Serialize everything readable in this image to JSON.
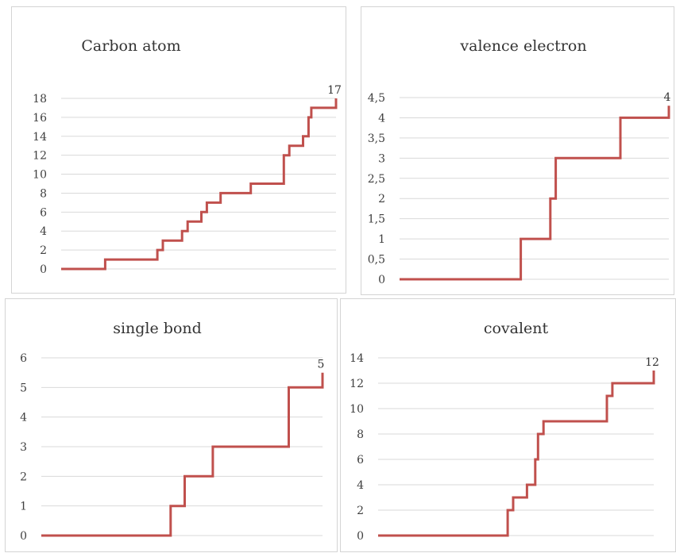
{
  "colors": {
    "line": "#c0504d",
    "grid": "#d9d9d9",
    "border": "#d4d4d4"
  },
  "chart_data": [
    {
      "type": "line",
      "title": "Carbon atom",
      "ylim": [
        0,
        18
      ],
      "yticks": [
        "0",
        "2",
        "4",
        "6",
        "8",
        "10",
        "12",
        "14",
        "16",
        "18"
      ],
      "grid": true,
      "x": [
        0,
        1,
        2,
        3,
        4,
        5,
        6,
        7,
        8,
        9,
        10,
        11,
        12,
        13,
        14,
        15,
        16,
        17,
        18,
        19,
        20,
        21,
        22,
        23,
        24,
        25,
        26,
        27,
        28,
        29,
        30,
        31,
        32,
        33,
        34,
        35,
        36,
        37,
        38,
        39,
        40,
        41,
        42,
        43,
        44,
        45,
        46,
        47,
        48,
        49,
        50,
        51,
        52,
        53,
        54,
        55,
        56,
        57,
        58,
        59,
        60,
        61,
        62,
        63,
        64,
        65,
        66,
        67,
        68,
        69,
        70,
        71,
        72,
        73,
        74,
        75,
        76,
        77,
        78,
        79,
        80,
        81,
        82,
        83,
        84,
        85,
        86,
        87,
        88,
        89,
        90,
        91,
        92,
        93,
        94,
        95,
        96,
        97,
        98,
        99,
        100
      ],
      "values": [
        0,
        0,
        0,
        0,
        0,
        0,
        0,
        0,
        0,
        0,
        0,
        0,
        0,
        0,
        0,
        0,
        1,
        1,
        1,
        1,
        1,
        1,
        1,
        1,
        1,
        1,
        1,
        1,
        1,
        1,
        1,
        1,
        1,
        1,
        1,
        2,
        2,
        3,
        3,
        3,
        3,
        3,
        3,
        3,
        4,
        4,
        5,
        5,
        5,
        5,
        5,
        6,
        6,
        7,
        7,
        7,
        7,
        7,
        8,
        8,
        8,
        8,
        8,
        8,
        8,
        8,
        8,
        8,
        8,
        9,
        9,
        9,
        9,
        9,
        9,
        9,
        9,
        9,
        9,
        9,
        9,
        12,
        12,
        13,
        13,
        13,
        13,
        13,
        14,
        14,
        16,
        17,
        17,
        17,
        17,
        17,
        17,
        17,
        17,
        17,
        18
      ],
      "data_label": "17"
    },
    {
      "type": "line",
      "title": "valence electron",
      "ylim": [
        0,
        4.5
      ],
      "yticks": [
        "0",
        "0,5",
        "1",
        "1,5",
        "2",
        "2,5",
        "3",
        "3,5",
        "4",
        "4,5"
      ],
      "grid": true,
      "x": [
        0,
        1,
        2,
        3,
        4,
        5,
        6,
        7,
        8,
        9,
        10,
        11,
        12,
        13,
        14,
        15,
        16,
        17,
        18,
        19,
        20,
        21,
        22,
        23,
        24,
        25,
        26,
        27,
        28,
        29,
        30,
        31,
        32,
        33,
        34,
        35,
        36,
        37,
        38,
        39,
        40,
        41,
        42,
        43,
        44,
        45,
        46,
        47,
        48,
        49,
        50,
        51,
        52,
        53,
        54,
        55,
        56,
        57,
        58,
        59,
        60,
        61,
        62,
        63,
        64,
        65,
        66,
        67,
        68,
        69,
        70,
        71,
        72,
        73,
        74,
        75,
        76,
        77,
        78,
        79,
        80,
        81,
        82,
        83,
        84,
        85,
        86,
        87,
        88,
        89,
        90,
        91,
        92,
        93,
        94,
        95,
        96,
        97,
        98,
        99,
        100
      ],
      "values": [
        0,
        0,
        0,
        0,
        0,
        0,
        0,
        0,
        0,
        0,
        0,
        0,
        0,
        0,
        0,
        0,
        0,
        0,
        0,
        0,
        0,
        0,
        0,
        0,
        0,
        0,
        0,
        0,
        0,
        0,
        0,
        0,
        0,
        0,
        0,
        0,
        0,
        0,
        0,
        0,
        0,
        0,
        0,
        0,
        0,
        1,
        1,
        1,
        1,
        1,
        1,
        1,
        1,
        1,
        1,
        1,
        2,
        2,
        3,
        3,
        3,
        3,
        3,
        3,
        3,
        3,
        3,
        3,
        3,
        3,
        3,
        3,
        3,
        3,
        3,
        3,
        3,
        3,
        3,
        3,
        3,
        3,
        4,
        4,
        4,
        4,
        4,
        4,
        4,
        4,
        4,
        4,
        4,
        4,
        4,
        4,
        4,
        4,
        4,
        4,
        4.3
      ],
      "data_label": "4"
    },
    {
      "type": "line",
      "title": "single bond",
      "ylim": [
        0,
        6
      ],
      "yticks": [
        "0",
        "1",
        "2",
        "3",
        "4",
        "5",
        "6"
      ],
      "grid": true,
      "x": [
        0,
        1,
        2,
        3,
        4,
        5,
        6,
        7,
        8,
        9,
        10,
        11,
        12,
        13,
        14,
        15,
        16,
        17,
        18,
        19,
        20,
        21,
        22,
        23,
        24,
        25,
        26,
        27,
        28,
        29,
        30,
        31,
        32,
        33,
        34,
        35,
        36,
        37,
        38,
        39,
        40,
        41,
        42,
        43,
        44,
        45,
        46,
        47,
        48,
        49,
        50,
        51,
        52,
        53,
        54,
        55,
        56,
        57,
        58,
        59,
        60,
        61,
        62,
        63,
        64,
        65,
        66,
        67,
        68,
        69,
        70,
        71,
        72,
        73,
        74,
        75,
        76,
        77,
        78,
        79,
        80,
        81,
        82,
        83,
        84,
        85,
        86,
        87,
        88,
        89,
        90,
        91,
        92,
        93,
        94,
        95,
        96,
        97,
        98,
        99,
        100
      ],
      "values": [
        0,
        0,
        0,
        0,
        0,
        0,
        0,
        0,
        0,
        0,
        0,
        0,
        0,
        0,
        0,
        0,
        0,
        0,
        0,
        0,
        0,
        0,
        0,
        0,
        0,
        0,
        0,
        0,
        0,
        0,
        0,
        0,
        0,
        0,
        0,
        0,
        0,
        0,
        0,
        0,
        0,
        0,
        0,
        0,
        0,
        0,
        1,
        1,
        1,
        1,
        1,
        2,
        2,
        2,
        2,
        2,
        2,
        2,
        2,
        2,
        2,
        3,
        3,
        3,
        3,
        3,
        3,
        3,
        3,
        3,
        3,
        3,
        3,
        3,
        3,
        3,
        3,
        3,
        3,
        3,
        3,
        3,
        3,
        3,
        3,
        3,
        3,
        3,
        5,
        5,
        5,
        5,
        5,
        5,
        5,
        5,
        5,
        5,
        5,
        5,
        5.5
      ],
      "data_label": "5"
    },
    {
      "type": "line",
      "title": "covalent",
      "ylim": [
        0,
        14
      ],
      "yticks": [
        "0",
        "2",
        "4",
        "6",
        "8",
        "10",
        "12",
        "14"
      ],
      "grid": true,
      "x": [
        0,
        1,
        2,
        3,
        4,
        5,
        6,
        7,
        8,
        9,
        10,
        11,
        12,
        13,
        14,
        15,
        16,
        17,
        18,
        19,
        20,
        21,
        22,
        23,
        24,
        25,
        26,
        27,
        28,
        29,
        30,
        31,
        32,
        33,
        34,
        35,
        36,
        37,
        38,
        39,
        40,
        41,
        42,
        43,
        44,
        45,
        46,
        47,
        48,
        49,
        50,
        51,
        52,
        53,
        54,
        55,
        56,
        57,
        58,
        59,
        60,
        61,
        62,
        63,
        64,
        65,
        66,
        67,
        68,
        69,
        70,
        71,
        72,
        73,
        74,
        75,
        76,
        77,
        78,
        79,
        80,
        81,
        82,
        83,
        84,
        85,
        86,
        87,
        88,
        89,
        90,
        91,
        92,
        93,
        94,
        95,
        96,
        97,
        98,
        99,
        100
      ],
      "values": [
        0,
        0,
        0,
        0,
        0,
        0,
        0,
        0,
        0,
        0,
        0,
        0,
        0,
        0,
        0,
        0,
        0,
        0,
        0,
        0,
        0,
        0,
        0,
        0,
        0,
        0,
        0,
        0,
        0,
        0,
        0,
        0,
        0,
        0,
        0,
        0,
        0,
        0,
        0,
        0,
        0,
        0,
        0,
        0,
        0,
        0,
        0,
        2,
        2,
        3,
        3,
        3,
        3,
        3,
        4,
        4,
        4,
        6,
        8,
        8,
        9,
        9,
        9,
        9,
        9,
        9,
        9,
        9,
        9,
        9,
        9,
        9,
        9,
        9,
        9,
        9,
        9,
        9,
        9,
        9,
        9,
        9,
        9,
        11,
        11,
        12,
        12,
        12,
        12,
        12,
        12,
        12,
        12,
        12,
        12,
        12,
        12,
        12,
        12,
        12,
        13
      ],
      "data_label": "12"
    }
  ]
}
